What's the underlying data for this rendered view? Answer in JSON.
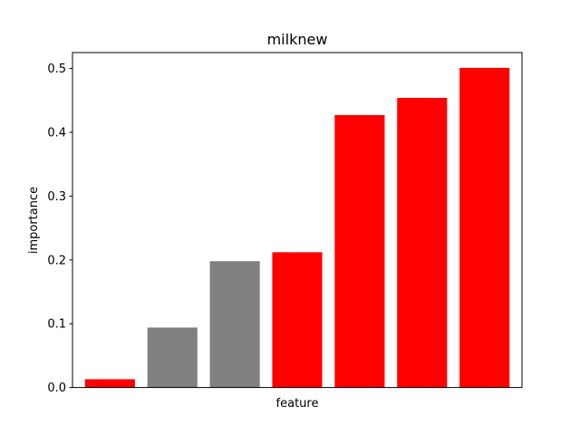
{
  "chart_data": {
    "type": "bar",
    "title": "milknew",
    "xlabel": "feature",
    "ylabel": "importance",
    "ylim": [
      0,
      0.525
    ],
    "yticks": [
      0.0,
      0.1,
      0.2,
      0.3,
      0.4,
      0.5
    ],
    "ytick_labels": [
      "0.0",
      "0.1",
      "0.2",
      "0.3",
      "0.4",
      "0.5"
    ],
    "grid": false,
    "legend": "none",
    "values": [
      0.013,
      0.094,
      0.198,
      0.212,
      0.427,
      0.454,
      0.501
    ],
    "colors": [
      "#ff0000",
      "#808080",
      "#808080",
      "#ff0000",
      "#ff0000",
      "#ff0000",
      "#ff0000"
    ]
  }
}
